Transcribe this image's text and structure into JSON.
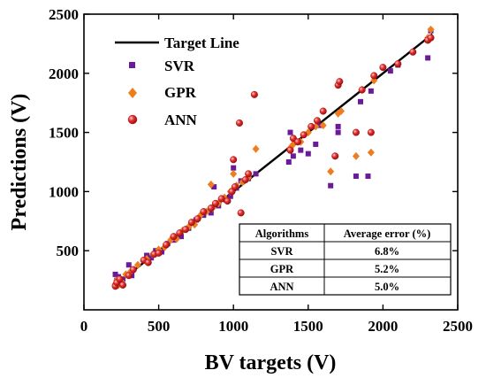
{
  "chart_data": {
    "type": "scatter",
    "title": "",
    "xlabel": "BV targets (V)",
    "ylabel": "Predictions (V)",
    "xlim": [
      0,
      2500
    ],
    "ylim": [
      0,
      2500
    ],
    "xticks": [
      0,
      500,
      1000,
      1500,
      2000,
      2500
    ],
    "yticks": [
      500,
      1000,
      1500,
      2000,
      2500
    ],
    "grid": false,
    "legend_position": "top-left",
    "target_line": {
      "name": "Target Line",
      "x": [
        200,
        2330
      ],
      "y": [
        200,
        2330
      ],
      "color": "#000000"
    },
    "series": [
      {
        "name": "SVR",
        "color": "#6a1b9a",
        "marker": "square",
        "x": [
          210,
          220,
          230,
          240,
          260,
          300,
          320,
          420,
          450,
          480,
          520,
          560,
          600,
          650,
          700,
          750,
          800,
          850,
          870,
          900,
          950,
          980,
          1000,
          1020,
          1050,
          1100,
          1150,
          1370,
          1380,
          1400,
          1450,
          1500,
          1550,
          1580,
          1650,
          1700,
          1700,
          1820,
          1850,
          1900,
          1920,
          2050,
          2100,
          2300,
          2320
        ],
        "y": [
          300,
          250,
          280,
          230,
          260,
          380,
          290,
          460,
          440,
          500,
          490,
          560,
          590,
          620,
          690,
          760,
          800,
          820,
          1040,
          880,
          930,
          960,
          1200,
          1030,
          1090,
          1110,
          1150,
          1250,
          1500,
          1300,
          1350,
          1320,
          1400,
          1560,
          1050,
          1500,
          1550,
          1130,
          1760,
          1130,
          1850,
          2020,
          2070,
          2130,
          2360
        ]
      },
      {
        "name": "GPR",
        "color": "#ee7d20",
        "marker": "diamond",
        "x": [
          210,
          220,
          230,
          250,
          280,
          310,
          360,
          420,
          460,
          500,
          540,
          580,
          620,
          660,
          700,
          740,
          780,
          820,
          850,
          860,
          900,
          940,
          980,
          1000,
          1020,
          1060,
          1100,
          1150,
          1380,
          1400,
          1450,
          1500,
          1550,
          1600,
          1650,
          1700,
          1720,
          1820,
          1860,
          1920,
          1940,
          2300,
          2320
        ],
        "y": [
          220,
          250,
          210,
          240,
          300,
          320,
          380,
          430,
          470,
          510,
          530,
          590,
          600,
          670,
          700,
          720,
          800,
          830,
          1060,
          860,
          900,
          950,
          1000,
          1150,
          1050,
          1080,
          1120,
          1360,
          1370,
          1400,
          1420,
          1500,
          1550,
          1560,
          1170,
          1660,
          1680,
          1300,
          1860,
          1330,
          1940,
          2300,
          2370
        ]
      },
      {
        "name": "ANN",
        "color": "#e02020",
        "marker": "circle",
        "x": [
          210,
          220,
          240,
          260,
          300,
          330,
          400,
          430,
          470,
          500,
          550,
          600,
          640,
          680,
          720,
          760,
          800,
          850,
          880,
          920,
          960,
          990,
          1000,
          1010,
          1040,
          1050,
          1080,
          1100,
          1140,
          1380,
          1400,
          1430,
          1470,
          1520,
          1560,
          1600,
          1680,
          1700,
          1710,
          1820,
          1860,
          1920,
          1940,
          2000,
          2100,
          2200,
          2300,
          2320
        ],
        "y": [
          200,
          230,
          260,
          210,
          290,
          340,
          420,
          400,
          470,
          480,
          550,
          620,
          650,
          680,
          740,
          770,
          830,
          860,
          900,
          940,
          920,
          1000,
          1270,
          1040,
          1580,
          820,
          1100,
          1150,
          1820,
          1350,
          1450,
          1420,
          1480,
          1550,
          1600,
          1680,
          1300,
          1900,
          1930,
          1500,
          1860,
          1500,
          1980,
          2050,
          2080,
          2180,
          2280,
          2300
        ]
      }
    ],
    "error_table": {
      "headers": [
        "Algorithms",
        "Average error (%)"
      ],
      "rows": [
        [
          "SVR",
          "6.8%"
        ],
        [
          "GPR",
          "5.2%"
        ],
        [
          "ANN",
          "5.0%"
        ]
      ]
    }
  }
}
